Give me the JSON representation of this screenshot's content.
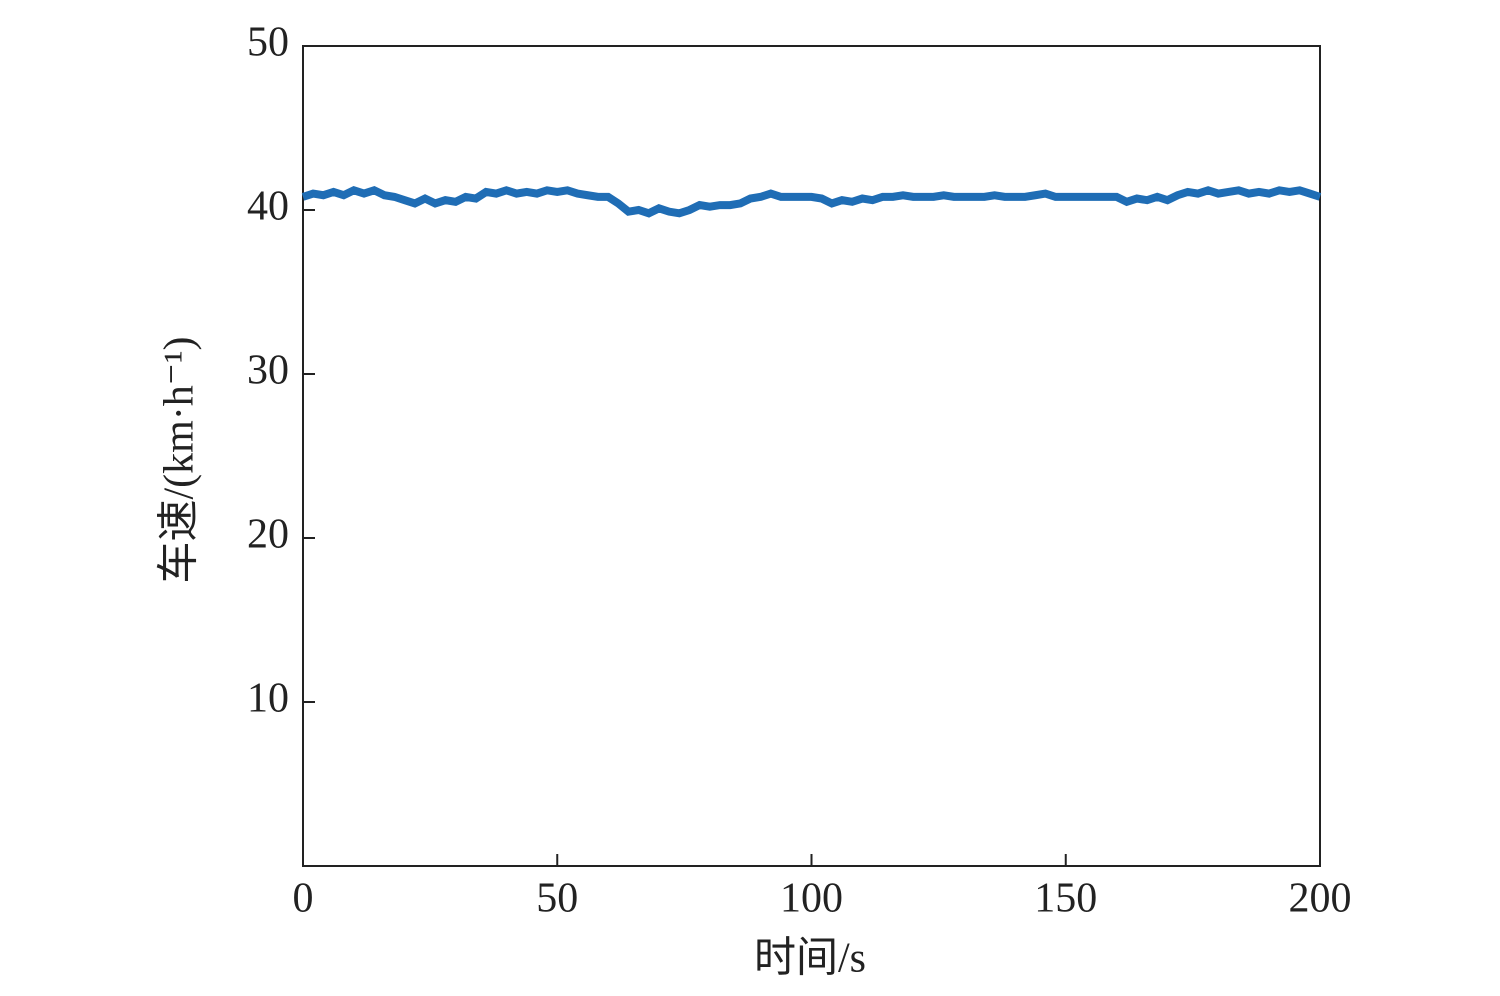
{
  "chart_data": {
    "type": "line",
    "x_label": "时间/s",
    "y_label": "车速/(km·h⁻¹)",
    "x": [
      0,
      2,
      4,
      6,
      8,
      10,
      12,
      14,
      16,
      18,
      20,
      22,
      24,
      26,
      28,
      30,
      32,
      34,
      36,
      38,
      40,
      42,
      44,
      46,
      48,
      50,
      52,
      54,
      56,
      58,
      60,
      62,
      64,
      66,
      68,
      70,
      72,
      74,
      76,
      78,
      80,
      82,
      84,
      86,
      88,
      90,
      92,
      94,
      96,
      98,
      100,
      102,
      104,
      106,
      108,
      110,
      112,
      114,
      116,
      118,
      120,
      122,
      124,
      126,
      128,
      130,
      132,
      134,
      136,
      138,
      140,
      142,
      144,
      146,
      148,
      150,
      152,
      154,
      156,
      158,
      160,
      162,
      164,
      166,
      168,
      170,
      172,
      174,
      176,
      178,
      180,
      182,
      184,
      186,
      188,
      190,
      192,
      194,
      196,
      198,
      200
    ],
    "values": [
      40.8,
      41.0,
      40.9,
      41.1,
      40.9,
      41.2,
      41.0,
      41.2,
      40.9,
      40.8,
      40.6,
      40.4,
      40.7,
      40.4,
      40.6,
      40.5,
      40.8,
      40.7,
      41.1,
      41.0,
      41.2,
      41.0,
      41.1,
      41.0,
      41.2,
      41.1,
      41.2,
      41.0,
      40.9,
      40.8,
      40.8,
      40.4,
      39.9,
      40.0,
      39.8,
      40.1,
      39.9,
      39.8,
      40.0,
      40.3,
      40.2,
      40.3,
      40.3,
      40.4,
      40.7,
      40.8,
      41.0,
      40.8,
      40.8,
      40.8,
      40.8,
      40.7,
      40.4,
      40.6,
      40.5,
      40.7,
      40.6,
      40.8,
      40.8,
      40.9,
      40.8,
      40.8,
      40.8,
      40.9,
      40.8,
      40.8,
      40.8,
      40.8,
      40.9,
      40.8,
      40.8,
      40.8,
      40.9,
      41.0,
      40.8,
      40.8,
      40.8,
      40.8,
      40.8,
      40.8,
      40.8,
      40.5,
      40.7,
      40.6,
      40.8,
      40.6,
      40.9,
      41.1,
      41.0,
      41.2,
      41.0,
      41.1,
      41.2,
      41.0,
      41.1,
      41.0,
      41.2,
      41.1,
      41.2,
      41.0,
      40.8
    ],
    "color": "#1f6db5",
    "xlim": [
      0,
      200
    ],
    "xticks": [
      0,
      50,
      100,
      150,
      200
    ],
    "ylim": [
      0,
      50
    ],
    "yticks": [
      10,
      20,
      30,
      40,
      50
    ]
  }
}
